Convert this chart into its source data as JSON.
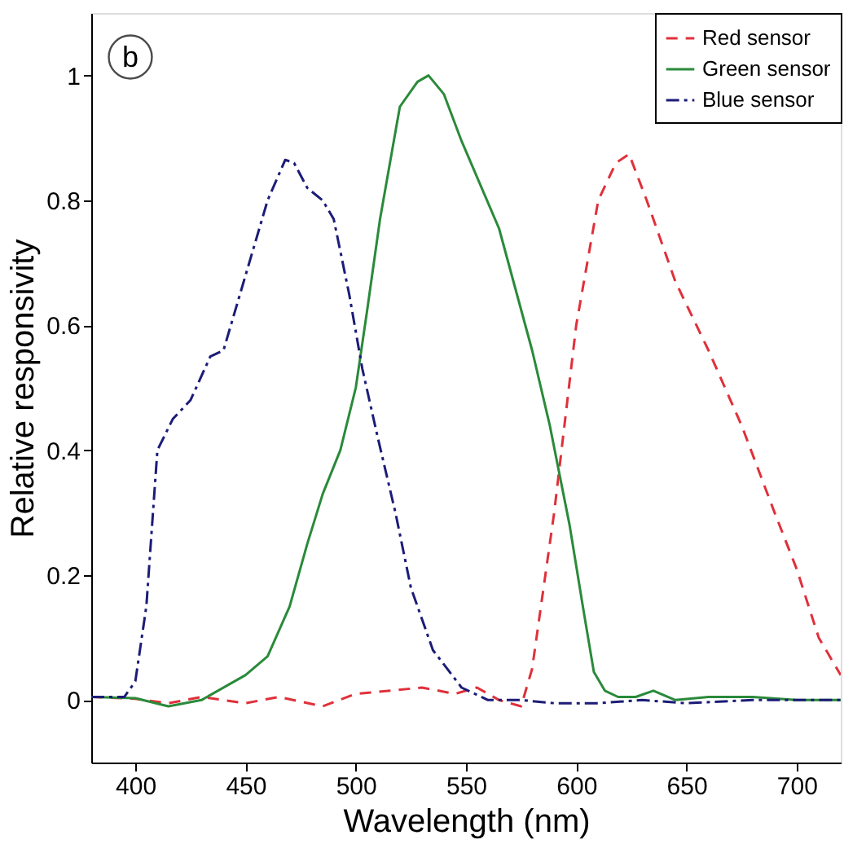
{
  "chart_data": {
    "type": "line",
    "xlabel": "Wavelength (nm)",
    "ylabel": "Relative responsivity",
    "annotations": [
      "b"
    ],
    "xlim": [
      380,
      720
    ],
    "xticks": [
      400,
      450,
      500,
      550,
      600,
      650,
      700
    ],
    "ylim": [
      -0.1,
      1.1
    ],
    "yticks": [
      0,
      0.2,
      0.4,
      0.6,
      0.8,
      1
    ],
    "grid": false,
    "legend": "top right",
    "series": [
      {
        "name": "Red sensor",
        "color": "#e0303a",
        "line_style": "dashed",
        "x": [
          380,
          400,
          415,
          430,
          450,
          465,
          485,
          500,
          530,
          545,
          555,
          565,
          575,
          580,
          590,
          600,
          610,
          618,
          624,
          632,
          645,
          660,
          675,
          690,
          700,
          710,
          720
        ],
        "values": [
          0.005,
          0.002,
          -0.005,
          0.005,
          -0.005,
          0.005,
          -0.01,
          0.01,
          0.02,
          0.01,
          0.02,
          0.0,
          -0.01,
          0.05,
          0.3,
          0.6,
          0.8,
          0.86,
          0.874,
          0.8,
          0.67,
          0.56,
          0.44,
          0.3,
          0.21,
          0.1,
          0.04
        ]
      },
      {
        "name": "Green sensor",
        "color": "#2a8a3a",
        "line_style": "solid",
        "x": [
          380,
          400,
          415,
          430,
          450,
          460,
          470,
          478,
          485,
          493,
          500,
          505,
          511,
          520,
          528,
          533,
          540,
          548,
          565,
          580,
          588,
          597,
          603,
          608,
          613,
          619,
          627,
          635,
          645,
          660,
          680,
          700,
          720
        ],
        "values": [
          0.005,
          0.003,
          -0.01,
          0.0,
          0.04,
          0.07,
          0.15,
          0.25,
          0.33,
          0.4,
          0.5,
          0.62,
          0.77,
          0.95,
          0.99,
          1.0,
          0.97,
          0.895,
          0.755,
          0.56,
          0.44,
          0.28,
          0.15,
          0.045,
          0.015,
          0.005,
          0.005,
          0.015,
          0.0,
          0.005,
          0.005,
          0.0,
          0.0
        ]
      },
      {
        "name": "Blue sensor",
        "color": "#1c1c78",
        "line_style": "dashdot",
        "x": [
          380,
          395,
          400,
          405,
          410,
          417,
          425,
          434,
          440,
          450,
          460,
          468,
          472,
          478,
          485,
          490,
          497,
          503,
          510,
          518,
          525,
          535,
          548,
          560,
          575,
          590,
          610,
          630,
          650,
          680,
          700,
          720
        ],
        "values": [
          0.005,
          0.005,
          0.03,
          0.15,
          0.4,
          0.45,
          0.48,
          0.55,
          0.56,
          0.68,
          0.8,
          0.865,
          0.86,
          0.82,
          0.8,
          0.77,
          0.65,
          0.53,
          0.42,
          0.3,
          0.18,
          0.08,
          0.02,
          0.0,
          0.0,
          -0.005,
          -0.005,
          0.0,
          -0.005,
          0.0,
          0.0,
          0.0
        ]
      }
    ]
  }
}
